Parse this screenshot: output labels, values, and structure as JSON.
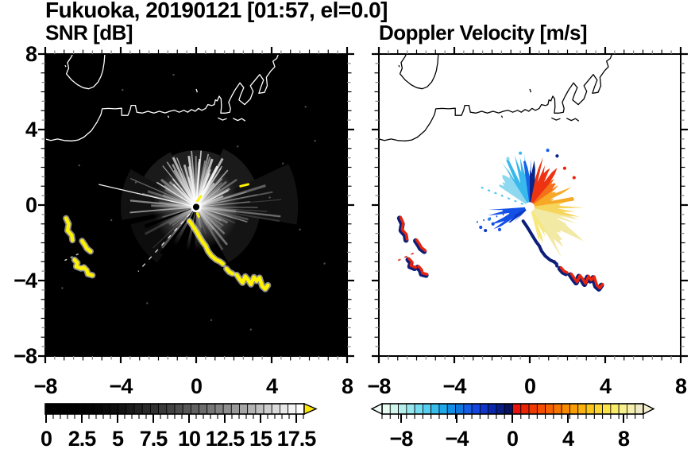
{
  "chart_data": {
    "type": "heatmap",
    "title": "Fukuoka, 20190121 [01:57, el=0.0]",
    "panels": [
      {
        "subtitle": "SNR [dB]",
        "bg": "#000000",
        "coast_color": "#ffffff"
      },
      {
        "subtitle": "Doppler Velocity [m/s]",
        "bg": "#ffffff",
        "coast_color": "#000000"
      }
    ],
    "axes": {
      "xlim": [
        -8,
        8
      ],
      "ylim": [
        -8,
        8
      ],
      "major_step": 4,
      "minor_step": 0.5,
      "xtick_values": [
        -8,
        -4,
        0,
        4,
        8
      ],
      "xtick_labels": [
        "−8",
        "−4",
        "0",
        "4",
        "8"
      ],
      "ytick_values": [
        8,
        4,
        0,
        -4,
        -8
      ],
      "ytick_labels": [
        "8",
        "4",
        "0",
        "−4",
        "−8"
      ]
    },
    "colorbar_snr": {
      "range": [
        0,
        18
      ],
      "tick_values": [
        0,
        2.5,
        5,
        7.5,
        10,
        12.5,
        15,
        17.5
      ],
      "tick_labels": [
        "0",
        "2.5",
        "5",
        "7.5",
        "10",
        "12.5",
        "15",
        "17.5"
      ],
      "arrow_color": "#FFE800",
      "cells": [
        "#000000",
        "#000000",
        "#000000",
        "#010101",
        "#030303",
        "#050505",
        "#070707",
        "#0a0a0a",
        "#0e0e0e",
        "#131313",
        "#1a1a1a",
        "#212121",
        "#292929",
        "#313131",
        "#3a3a3a",
        "#434343",
        "#4d4d4d",
        "#575757",
        "#616161",
        "#6c6c6c",
        "#777777",
        "#828282",
        "#8e8e8e",
        "#9a9a9a",
        "#a6a6a6",
        "#b3b3b3",
        "#c0c0c0",
        "#cdcdcd",
        "#dadada",
        "#e8e8e8",
        "#f4f4f4",
        "#ffffff"
      ]
    },
    "colorbar_vel": {
      "range": [
        -9.4,
        9.4
      ],
      "tick_values": [
        -8,
        -4,
        0,
        4,
        8
      ],
      "tick_labels": [
        "−8",
        "−4",
        "0",
        "4",
        "8"
      ],
      "left_arrow": "#EFFCF6",
      "right_arrow": "#F2EED2",
      "cells": [
        "#E6FAF2",
        "#CFF5EC",
        "#B4EFEA",
        "#96E7EE",
        "#76DCF0",
        "#55CEF0",
        "#36BDEE",
        "#1FA8EA",
        "#128FE4",
        "#0F76DE",
        "#145DE4",
        "#1347E0",
        "#0F35CC",
        "#0B28AC",
        "#081D84",
        "#06125C",
        "#E81410",
        "#EA2602",
        "#F03A00",
        "#F44E00",
        "#F66200",
        "#F87600",
        "#F98A00",
        "#FA9E07",
        "#FBB20F",
        "#FCC51C",
        "#FCD62E",
        "#FBE348",
        "#F9EC68",
        "#F7F08C",
        "#F4EFAC",
        "#F0EAC4"
      ]
    },
    "coastline": {
      "main": [
        [
          -8.0,
          3.5
        ],
        [
          -7.7,
          3.42
        ],
        [
          -7.35,
          3.5
        ],
        [
          -7.0,
          3.42
        ],
        [
          -6.6,
          3.4
        ],
        [
          -6.25,
          3.45
        ],
        [
          -5.95,
          3.6
        ],
        [
          -5.55,
          3.95
        ],
        [
          -5.25,
          4.4
        ],
        [
          -5.05,
          4.8
        ],
        [
          -4.98,
          5.1
        ],
        [
          -4.65,
          5.12
        ],
        [
          -4.3,
          5.1
        ],
        [
          -3.95,
          5.13
        ],
        [
          -3.95,
          4.75
        ],
        [
          -3.62,
          4.75
        ],
        [
          -3.5,
          5.05
        ],
        [
          -3.45,
          5.28
        ],
        [
          -3.22,
          5.28
        ],
        [
          -3.15,
          4.92
        ],
        [
          -2.85,
          4.87
        ],
        [
          -2.55,
          4.97
        ],
        [
          -2.25,
          4.87
        ],
        [
          -1.95,
          4.97
        ],
        [
          -1.65,
          4.88
        ],
        [
          -1.4,
          4.97
        ],
        [
          -1.15,
          5.02
        ],
        [
          -0.9,
          4.92
        ],
        [
          -0.65,
          5.02
        ],
        [
          -0.45,
          4.92
        ],
        [
          -0.25,
          5.06
        ],
        [
          -0.05,
          4.97
        ],
        [
          0.12,
          5.12
        ],
        [
          0.3,
          5.02
        ],
        [
          0.5,
          5.12
        ],
        [
          0.62,
          5.32
        ],
        [
          0.82,
          5.27
        ],
        [
          0.96,
          5.32
        ],
        [
          1.02,
          5.57
        ],
        [
          1.12,
          5.52
        ],
        [
          1.22,
          5.77
        ],
        [
          1.32,
          5.62
        ],
        [
          1.34,
          5.2
        ],
        [
          1.3,
          4.87
        ],
        [
          1.56,
          4.87
        ],
        [
          1.78,
          4.92
        ],
        [
          1.82,
          5.12
        ],
        [
          1.72,
          5.45
        ],
        [
          1.88,
          5.77
        ],
        [
          2.07,
          6.12
        ],
        [
          2.32,
          6.47
        ],
        [
          2.52,
          6.22
        ],
        [
          2.37,
          5.87
        ],
        [
          2.27,
          5.57
        ],
        [
          2.57,
          5.32
        ],
        [
          2.87,
          5.62
        ],
        [
          3.02,
          6.02
        ],
        [
          2.87,
          6.32
        ],
        [
          3.12,
          6.62
        ],
        [
          3.37,
          6.92
        ],
        [
          3.57,
          6.62
        ],
        [
          3.42,
          6.22
        ],
        [
          3.32,
          5.92
        ],
        [
          3.62,
          5.97
        ],
        [
          3.77,
          6.32
        ],
        [
          3.72,
          6.77
        ],
        [
          3.97,
          7.12
        ],
        [
          4.17,
          7.32
        ],
        [
          4.07,
          7.62
        ],
        [
          4.27,
          7.77
        ],
        [
          4.4,
          8.1
        ]
      ],
      "island": [
        [
          -6.5,
          8.1
        ],
        [
          -6.62,
          7.85
        ],
        [
          -6.82,
          7.55
        ],
        [
          -6.76,
          7.25
        ],
        [
          -6.88,
          6.95
        ],
        [
          -6.6,
          6.62
        ],
        [
          -6.3,
          6.38
        ],
        [
          -6.0,
          6.22
        ],
        [
          -5.7,
          6.16
        ],
        [
          -5.44,
          6.26
        ],
        [
          -5.2,
          6.52
        ],
        [
          -5.05,
          6.82
        ],
        [
          -4.95,
          7.12
        ],
        [
          -4.88,
          7.55
        ],
        [
          -4.84,
          8.1
        ]
      ],
      "bits": [
        [
          [
            1.15,
            4.62
          ],
          [
            1.4,
            4.5
          ],
          [
            1.62,
            4.58
          ]
        ],
        [
          [
            1.95,
            4.6
          ],
          [
            2.2,
            4.48
          ],
          [
            2.42,
            4.58
          ],
          [
            2.6,
            4.45
          ]
        ]
      ],
      "marks": [
        [
          [
            0.0,
            6.15
          ],
          [
            0.06,
            5.97
          ]
        ],
        [
          [
            -1.5,
            4.73
          ],
          [
            -1.45,
            4.63
          ]
        ],
        [
          [
            -6.95,
            7.4
          ],
          [
            -6.9,
            7.32
          ]
        ]
      ]
    },
    "radar_center": [
      0.0,
      -0.1
    ],
    "snr_field": {
      "ray_sectors": [
        {
          "a1": 95,
          "a2": 150,
          "n": 16,
          "r1": 1.6,
          "r2": 2.9,
          "o1": 0.35,
          "o2": 0.8
        },
        {
          "a1": 55,
          "a2": 95,
          "n": 15,
          "r1": 1.8,
          "r2": 3.1,
          "o1": 0.4,
          "o2": 0.85
        },
        {
          "a1": 20,
          "a2": 55,
          "n": 10,
          "r1": 1.5,
          "r2": 2.6,
          "o1": 0.3,
          "o2": 0.6
        },
        {
          "a1": -15,
          "a2": 20,
          "n": 12,
          "r1": 2.0,
          "r2": 4.8,
          "o1": 0.15,
          "o2": 0.4
        },
        {
          "a1": -60,
          "a2": -15,
          "n": 10,
          "r1": 1.5,
          "r2": 3.2,
          "o1": 0.2,
          "o2": 0.5
        },
        {
          "a1": 150,
          "a2": 185,
          "n": 9,
          "r1": 1.8,
          "r2": 3.8,
          "o1": 0.25,
          "o2": 0.55
        },
        {
          "a1": 195,
          "a2": 232,
          "n": 7,
          "r1": 1.5,
          "r2": 3.4,
          "o1": 0.12,
          "o2": 0.3
        },
        {
          "a1": -85,
          "a2": -60,
          "n": 4,
          "r1": 1.0,
          "r2": 2.0,
          "o1": 0.1,
          "o2": 0.22
        }
      ],
      "haze_sectors": [
        {
          "a1": -10,
          "a2": 25,
          "r": 5.4,
          "o": 0.07
        },
        {
          "a1": 25,
          "a2": 65,
          "r": 3.4,
          "o": 0.1
        },
        {
          "a1": 65,
          "a2": 115,
          "r": 3.0,
          "o": 0.12
        },
        {
          "a1": 115,
          "a2": 150,
          "r": 3.2,
          "o": 0.1
        },
        {
          "a1": 150,
          "a2": 190,
          "r": 4.0,
          "o": 0.07
        },
        {
          "a1": -60,
          "a2": -10,
          "r": 3.4,
          "o": 0.08
        },
        {
          "a1": 195,
          "a2": 235,
          "r": 3.6,
          "o": 0.05
        }
      ],
      "dark_wedges": [
        {
          "a1": 243,
          "a2": 256,
          "r": 3.5
        },
        {
          "a1": 231.5,
          "a2": 236.5,
          "r": 3.1
        },
        {
          "a1": 199,
          "a2": 203,
          "r": 2.9
        },
        {
          "a1": 261,
          "a2": 268,
          "r": 2.3
        }
      ],
      "thin_ray": {
        "angle": 167,
        "len": 5.3
      },
      "dashed_ray": {
        "angle": 228,
        "len": 4.6
      },
      "specks": [
        [
          -3.2,
          1.2
        ],
        [
          -4.5,
          -0.8
        ],
        [
          2.2,
          3.1
        ],
        [
          4.6,
          2.2
        ],
        [
          5.5,
          -1.3
        ],
        [
          -2.6,
          -5.2
        ],
        [
          0.8,
          -6.1
        ],
        [
          3.9,
          0.4
        ],
        [
          -6.2,
          2.1
        ],
        [
          6.3,
          3.4
        ],
        [
          -1.2,
          6.9
        ],
        [
          5.8,
          5.2
        ],
        [
          -7.1,
          -4.4
        ],
        [
          2.9,
          -6.6
        ],
        [
          6.8,
          -3.1
        ],
        [
          -3.9,
          6.1
        ]
      ]
    },
    "features": {
      "snr_yellow": "#FFF200",
      "vel_red": "#E8240C",
      "vel_navy": "#0E1E78",
      "chain_main": [
        [
          -0.35,
          -0.85
        ],
        [
          -0.18,
          -1.1
        ],
        [
          -0.02,
          -1.35
        ],
        [
          0.14,
          -1.62
        ],
        [
          0.34,
          -1.95
        ],
        [
          0.5,
          -2.16
        ],
        [
          0.63,
          -2.45
        ],
        [
          0.82,
          -2.7
        ],
        [
          1.06,
          -2.9
        ],
        [
          1.27,
          -3.0
        ],
        [
          1.42,
          -3.12
        ]
      ],
      "chain_mid": [
        [
          1.6,
          -3.37
        ],
        [
          1.76,
          -3.55
        ],
        [
          1.92,
          -3.63
        ]
      ],
      "chain_cluster": [
        [
          2.15,
          -3.7
        ],
        [
          2.32,
          -3.95
        ],
        [
          2.46,
          -4.12
        ],
        [
          2.6,
          -3.78
        ],
        [
          2.76,
          -3.97
        ],
        [
          2.9,
          -4.2
        ],
        [
          3.06,
          -3.82
        ],
        [
          3.2,
          -4.02
        ],
        [
          3.36,
          -3.85
        ],
        [
          3.5,
          -4.3
        ],
        [
          3.66,
          -4.45
        ],
        [
          3.8,
          -4.25
        ]
      ],
      "hub_dash": [
        [
          0.02,
          0.15
        ],
        [
          0.24,
          0.46
        ]
      ],
      "hub_tick": [
        [
          0.06,
          -0.45
        ],
        [
          0.14,
          -0.62
        ]
      ],
      "upper_dash": [
        [
          2.35,
          1.0
        ],
        [
          2.76,
          1.1
        ]
      ],
      "left_cluster": [
        [
          [
            -6.9,
            -0.7
          ],
          [
            -6.76,
            -1.0
          ],
          [
            -6.82,
            -1.35
          ],
          [
            -6.6,
            -1.6
          ],
          [
            -6.56,
            -1.86
          ]
        ],
        [
          [
            -6.05,
            -1.9
          ],
          [
            -5.9,
            -2.12
          ],
          [
            -5.8,
            -2.3
          ],
          [
            -5.6,
            -2.46
          ]
        ],
        [
          [
            -6.45,
            -2.9
          ],
          [
            -6.3,
            -3.06
          ],
          [
            -6.36,
            -3.26
          ],
          [
            -6.1,
            -3.36
          ]
        ],
        [
          [
            -5.95,
            -3.3
          ],
          [
            -5.8,
            -3.46
          ],
          [
            -5.74,
            -3.66
          ],
          [
            -5.5,
            -3.72
          ]
        ]
      ],
      "left_dotted": [
        [
          -6.95,
          -2.92
        ],
        [
          -6.18,
          -2.56
        ]
      ]
    },
    "vel_field": {
      "wedges": [
        {
          "a1": 120,
          "a2": 146,
          "r": 2.5,
          "color": "#8ED8F0"
        },
        {
          "a1": 96,
          "a2": 122,
          "r": 2.9,
          "color": "#38B8EC"
        },
        {
          "a1": -58,
          "a2": -12,
          "r": 3.3,
          "color": "#F2E9A4"
        },
        {
          "a1": -75,
          "a2": -55,
          "r": 2.0,
          "color": "#F6E87E"
        },
        {
          "a1": -14,
          "a2": 10,
          "r": 2.9,
          "color": "#F6D55C"
        },
        {
          "a1": 8,
          "a2": 38,
          "r": 2.5,
          "color": "#F7A825"
        },
        {
          "a1": 36,
          "a2": 52,
          "r": 2.3,
          "color": "#F4701A"
        },
        {
          "a1": 50,
          "a2": 80,
          "r": 2.8,
          "color": "#EE3310"
        },
        {
          "a1": 88,
          "a2": 98,
          "r": 3.1,
          "color": "#1565E8"
        },
        {
          "a1": 79,
          "a2": 90,
          "r": 2.9,
          "color": "#0A2488"
        },
        {
          "a1": 184,
          "a2": 214,
          "r": 2.2,
          "color": "#1350E6"
        },
        {
          "a1": 208,
          "a2": 224,
          "r": 1.5,
          "color": "#0B3BC4"
        }
      ],
      "dots": [
        {
          "x": -1.95,
          "y": -1.0,
          "c": "#1350E6"
        },
        {
          "x": -2.35,
          "y": -1.35,
          "c": "#0B3BC4"
        },
        {
          "x": -2.6,
          "y": -1.18,
          "c": "#1350E6"
        },
        {
          "x": -2.15,
          "y": -0.75,
          "c": "#2E8EE8"
        },
        {
          "x": -1.6,
          "y": -1.3,
          "c": "#1350E6"
        },
        {
          "x": 1.85,
          "y": 1.95,
          "c": "#E8240C"
        },
        {
          "x": 2.35,
          "y": 1.45,
          "c": "#E8240C"
        },
        {
          "x": 1.45,
          "y": 2.6,
          "c": "#0A2488"
        },
        {
          "x": 0.95,
          "y": 2.9,
          "c": "#1565E8"
        },
        {
          "x": -0.5,
          "y": 2.75,
          "c": "#38B8EC"
        },
        {
          "x": -1.15,
          "y": 2.45,
          "c": "#8ED8F0"
        },
        {
          "x": 1.3,
          "y": -3.0,
          "c": "#E8240C"
        },
        {
          "x": 1.44,
          "y": -3.22,
          "c": "#0E1E78"
        }
      ],
      "cyan_dashed": {
        "angle": 158,
        "len": 2.9,
        "color": "#45C6EE"
      },
      "blue_dotted": {
        "angle": 196,
        "len": 3.1,
        "color": "#1350E6"
      }
    }
  }
}
